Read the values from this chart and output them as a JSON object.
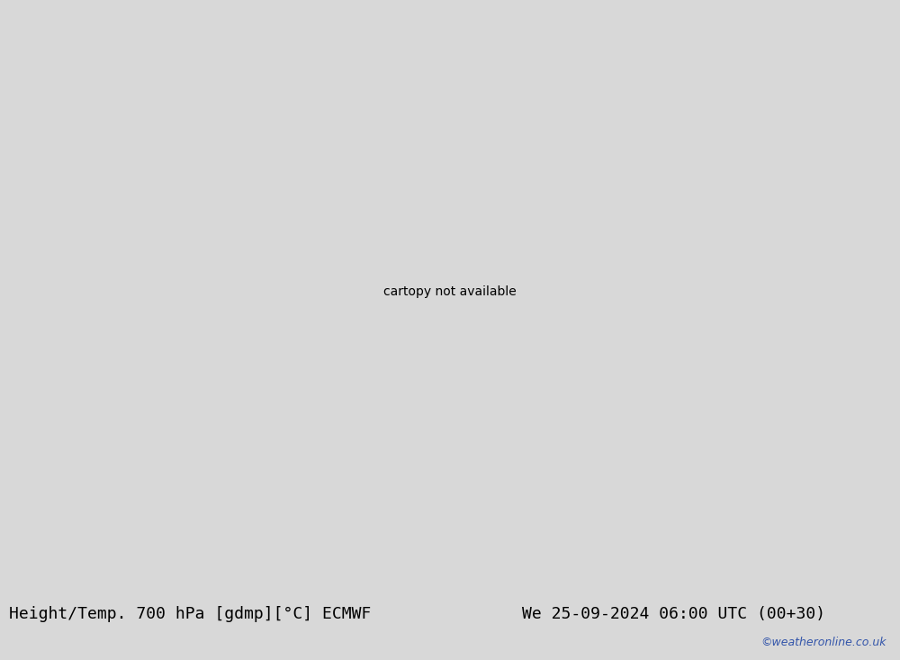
{
  "title_left": "Height/Temp. 700 hPa [gdmp][°C] ECMWF",
  "title_right": "We 25-09-2024 06:00 UTC (00+30)",
  "watermark": "©weatheronline.co.uk",
  "bg_map": "#e8e8e8",
  "land_green": "#c8f0a0",
  "land_gray": "#c0c0c0",
  "sea_color": "#e0e0e0",
  "border_color": "#888888",
  "bottom_bar_color": "#d8d8d8",
  "title_fontsize": 13,
  "watermark_color": "#3355aa",
  "watermark_fontsize": 9,
  "fig_width": 10.0,
  "fig_height": 7.33,
  "lon_min": -30,
  "lon_max": 50,
  "lat_min": 25,
  "lat_max": 72
}
